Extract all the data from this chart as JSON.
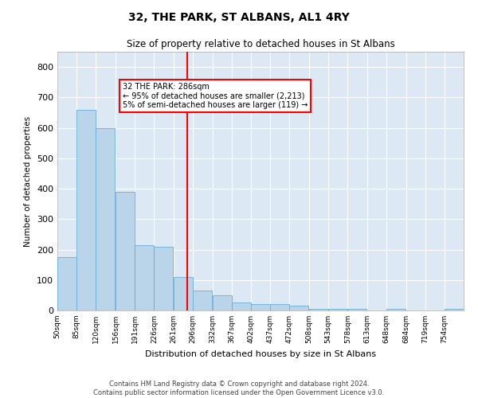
{
  "title": "32, THE PARK, ST ALBANS, AL1 4RY",
  "subtitle": "Size of property relative to detached houses in St Albans",
  "xlabel": "Distribution of detached houses by size in St Albans",
  "ylabel": "Number of detached properties",
  "bar_color": "#bad4ea",
  "bar_edge_color": "#6aaed6",
  "background_color": "#dce9f5",
  "grid_color": "#ffffff",
  "red_line_x": 286,
  "annotation_text": "32 THE PARK: 286sqm\n← 95% of detached houses are smaller (2,213)\n5% of semi-detached houses are larger (119) →",
  "categories": [
    "50sqm",
    "85sqm",
    "120sqm",
    "156sqm",
    "191sqm",
    "226sqm",
    "261sqm",
    "296sqm",
    "332sqm",
    "367sqm",
    "402sqm",
    "437sqm",
    "472sqm",
    "508sqm",
    "543sqm",
    "578sqm",
    "613sqm",
    "648sqm",
    "684sqm",
    "719sqm",
    "754sqm"
  ],
  "bin_starts": [
    50,
    85,
    120,
    156,
    191,
    226,
    261,
    296,
    332,
    367,
    402,
    437,
    472,
    508,
    543,
    578,
    613,
    648,
    684,
    719,
    754
  ],
  "bin_width": 35,
  "values": [
    175,
    660,
    600,
    390,
    215,
    210,
    110,
    65,
    50,
    25,
    20,
    20,
    15,
    5,
    5,
    5,
    1,
    5,
    1,
    1,
    5
  ],
  "ylim": [
    0,
    850
  ],
  "yticks": [
    0,
    100,
    200,
    300,
    400,
    500,
    600,
    700,
    800
  ],
  "footnote1": "Contains HM Land Registry data © Crown copyright and database right 2024.",
  "footnote2": "Contains public sector information licensed under the Open Government Licence v3.0."
}
